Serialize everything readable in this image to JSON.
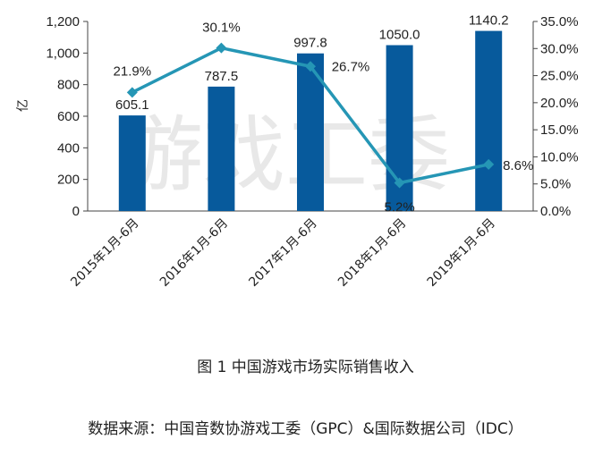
{
  "chart_data": {
    "type": "bar",
    "categories": [
      "2015年1月-6月",
      "2016年1月-6月",
      "2017年1月-6月",
      "2018年1月-6月",
      "2019年1月-6月"
    ],
    "series": [
      {
        "values": [
          605.1,
          787.5,
          997.8,
          1050.0,
          1140.2
        ],
        "axis": "left",
        "kind": "bar",
        "labels": [
          "605.1",
          "787.5",
          "997.8",
          "1050.0",
          "1140.2"
        ]
      },
      {
        "values": [
          21.9,
          30.1,
          26.7,
          5.2,
          8.6
        ],
        "axis": "right",
        "kind": "line",
        "labels": [
          "21.9%",
          "30.1%",
          "26.7%",
          "5.2%",
          "8.6%"
        ]
      }
    ],
    "ylabel": "亿",
    "ylim": [
      0,
      1200
    ],
    "yticks": [
      "0",
      "200",
      "400",
      "600",
      "800",
      "1,000",
      "1,200"
    ],
    "y2lim": [
      0,
      35
    ],
    "y2ticks": [
      "0.0%",
      "5.0%",
      "10.0%",
      "15.0%",
      "20.0%",
      "25.0%",
      "30.0%",
      "35.0%"
    ],
    "grid": false,
    "legend": "none",
    "colors": {
      "bar": "#075a9c",
      "line": "#2596b5",
      "watermark": "#d7d7d7"
    }
  },
  "watermark": "游戏工委",
  "caption": "图 1  中国游戏市场实际销售收入",
  "source": "数据来源：中国音数协游戏工委（GPC）&国际数据公司（IDC）"
}
